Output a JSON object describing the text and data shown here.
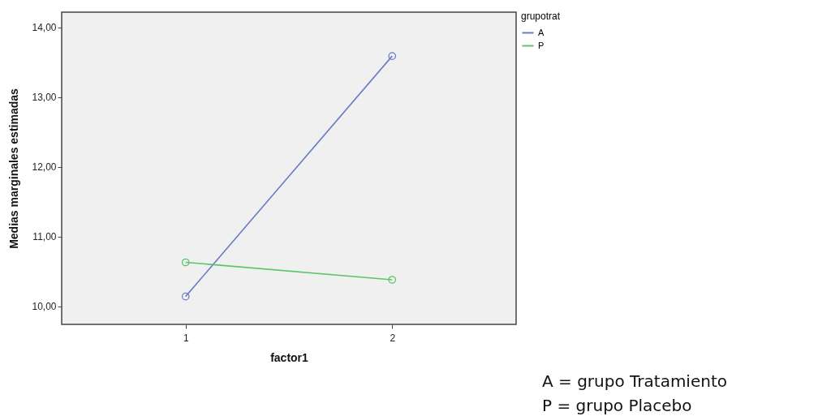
{
  "chart_data": {
    "type": "line",
    "xlabel": "factor1",
    "ylabel": "Medias marginales estimadas",
    "legend_title": "grupotrat",
    "categories": [
      "1",
      "2"
    ],
    "series": [
      {
        "name": "A",
        "color": "#6a7cc6",
        "values": [
          10.14,
          13.59
        ]
      },
      {
        "name": "P",
        "color": "#5cc46a",
        "values": [
          10.63,
          10.38
        ]
      }
    ],
    "ylim": [
      9.74,
      14.22
    ],
    "yticks": [
      {
        "value": 10,
        "label": "10,00"
      },
      {
        "value": 11,
        "label": "11,00"
      },
      {
        "value": 12,
        "label": "12,00"
      },
      {
        "value": 13,
        "label": "13,00"
      },
      {
        "value": 14,
        "label": "14,00"
      }
    ],
    "marker": "circle",
    "grid": false,
    "legend": "top right",
    "annotations": [
      "A = grupo Tratamiento",
      "P = grupo Placebo"
    ]
  }
}
